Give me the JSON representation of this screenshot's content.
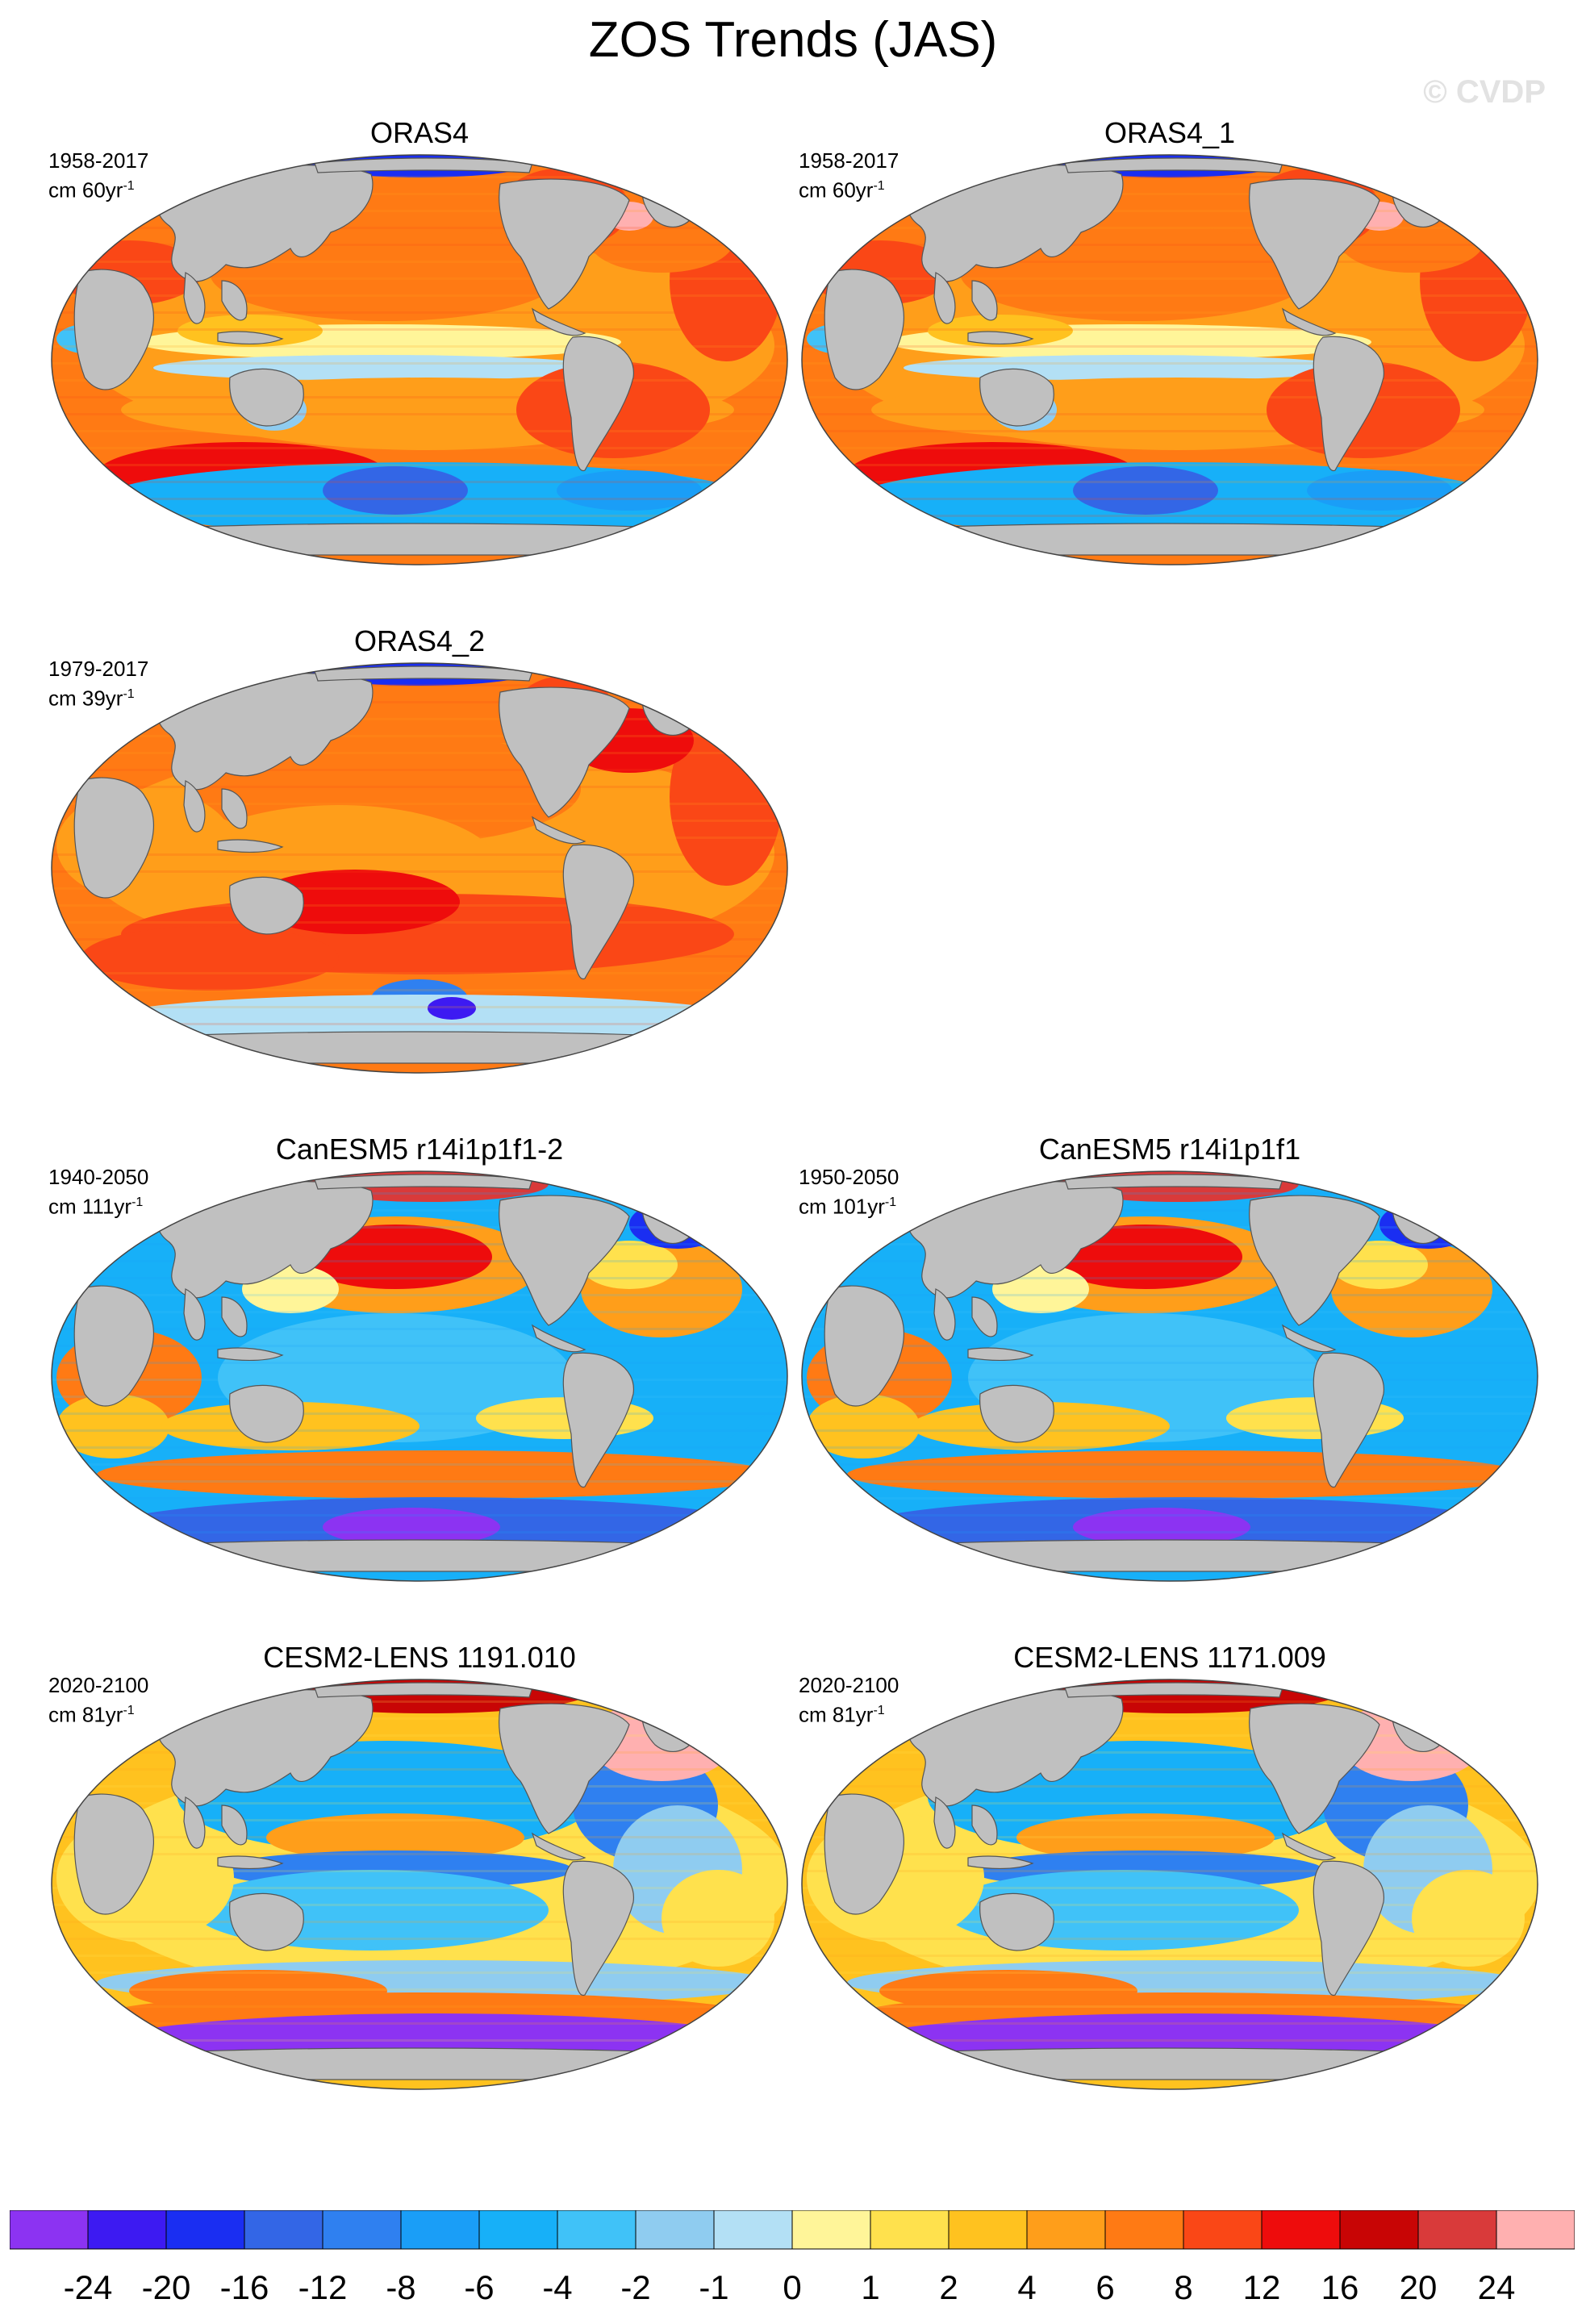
{
  "figure": {
    "title": "ZOS Trends (JAS)",
    "watermark": "© CVDP"
  },
  "colors": {
    "land": "#c0c0c0",
    "coast": "#555555"
  },
  "panels": [
    {
      "title": "ORAS4",
      "period": "1958-2017",
      "units": "cm 60yr",
      "units_sup": "-1",
      "pattern": "oras_long"
    },
    {
      "title": "ORAS4_1",
      "period": "1958-2017",
      "units": "cm 60yr",
      "units_sup": "-1",
      "pattern": "oras_long"
    },
    {
      "title": "ORAS4_2",
      "period": "1979-2017",
      "units": "cm 39yr",
      "units_sup": "-1",
      "pattern": "oras_short"
    },
    {
      "title": "CanESM5 r14i1p1f1-2",
      "period": "1940-2050",
      "units": "cm 111yr",
      "units_sup": "-1",
      "pattern": "canesm"
    },
    {
      "title": "CanESM5 r14i1p1f1",
      "period": "1950-2050",
      "units": "cm 101yr",
      "units_sup": "-1",
      "pattern": "canesm"
    },
    {
      "title": "CESM2-LENS 1191.010",
      "period": "2020-2100",
      "units": "cm 81yr",
      "units_sup": "-1",
      "pattern": "cesm"
    },
    {
      "title": "CESM2-LENS 1171.009",
      "period": "2020-2100",
      "units": "cm 81yr",
      "units_sup": "-1",
      "pattern": "cesm"
    }
  ],
  "colorbar": {
    "labels": [
      "-24",
      "-20",
      "-16",
      "-12",
      "-8",
      "-6",
      "-4",
      "-2",
      "-1",
      "0",
      "1",
      "2",
      "4",
      "6",
      "8",
      "12",
      "16",
      "20",
      "24"
    ],
    "colors": [
      "#8c33f2",
      "#3d1af2",
      "#1a2ef2",
      "#3366e6",
      "#2f80f0",
      "#1a9ef7",
      "#17b0f8",
      "#40c2f8",
      "#8fccf0",
      "#b3e0f5",
      "#fff599",
      "#ffe14d",
      "#ffc21f",
      "#ff9e1a",
      "#ff7a14",
      "#fa4716",
      "#ee0c0c",
      "#c80505",
      "#d93a3a",
      "#ffb0b0"
    ]
  }
}
